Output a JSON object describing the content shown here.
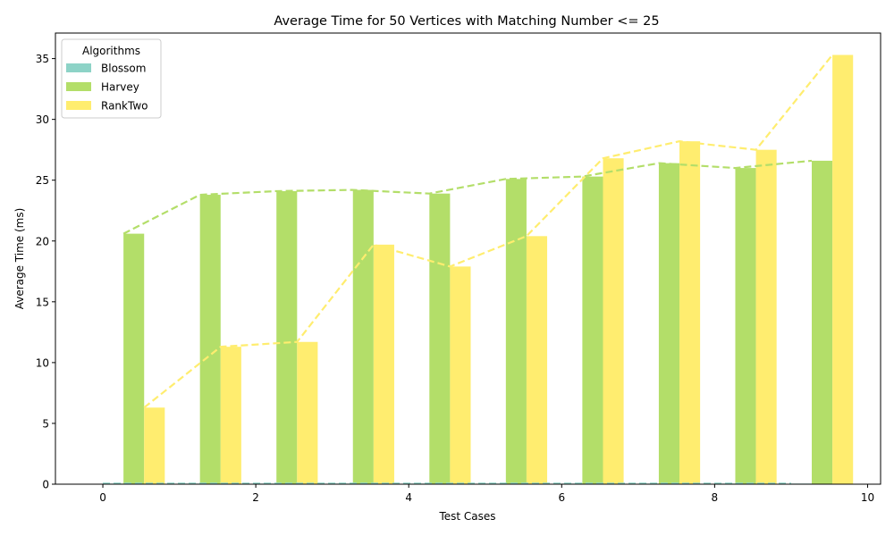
{
  "chart_data": {
    "type": "bar",
    "title": "Average Time for 50 Vertices with Matching Number <= 25",
    "xlabel": "Test Cases",
    "ylabel": "Average Time (ms)",
    "xlim": [
      -0.62,
      10.17
    ],
    "ylim": [
      0,
      37.1
    ],
    "xticks": [
      0,
      2,
      4,
      6,
      8,
      10
    ],
    "yticks": [
      0,
      5,
      10,
      15,
      20,
      25,
      30,
      35
    ],
    "x": [
      0,
      1,
      2,
      3,
      4,
      5,
      6,
      7,
      8,
      9
    ],
    "bar_width": 0.27,
    "grid": false,
    "legend": {
      "title": "Algorithms",
      "placement": "top-left"
    },
    "series": [
      {
        "name": "Blossom",
        "color": "#8dd3c7",
        "values": [
          0.05,
          0.05,
          0.05,
          0.05,
          0.05,
          0.05,
          0.05,
          0.05,
          0.05,
          0.05
        ]
      },
      {
        "name": "Harvey",
        "color": "#b3de69",
        "values": [
          20.6,
          23.8,
          24.1,
          24.2,
          23.9,
          25.1,
          25.3,
          26.4,
          26.0,
          26.6
        ]
      },
      {
        "name": "RankTwo",
        "color": "#ffed6f",
        "values": [
          6.3,
          11.3,
          11.7,
          19.7,
          17.9,
          20.4,
          26.8,
          28.2,
          27.5,
          35.3
        ]
      }
    ]
  }
}
